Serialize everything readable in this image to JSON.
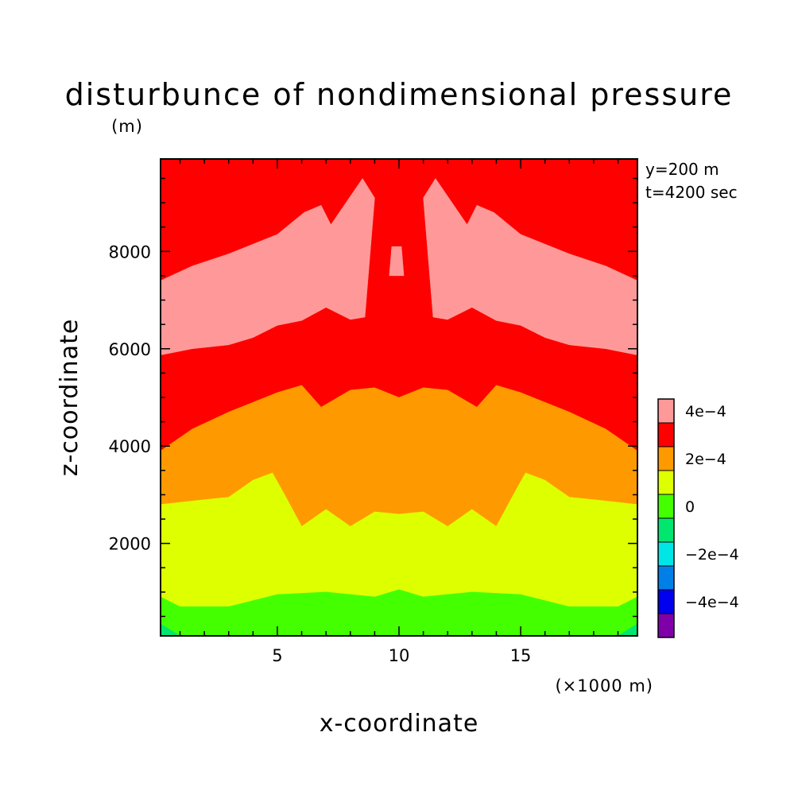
{
  "chart_data": {
    "type": "heatmap",
    "title": "disturbunce of nondimensional pressure",
    "xlabel": "x-coordinate",
    "ylabel": "z-coordinate",
    "x_unit": "(×1000 m)",
    "y_unit": "(m)",
    "annotations": [
      "y=200 m",
      "t=4200 sec"
    ],
    "xlim": [
      0.2,
      19.8
    ],
    "ylim": [
      100,
      9900
    ],
    "xticks": [
      {
        "value": 5,
        "label": "5"
      },
      {
        "value": 10,
        "label": "10"
      },
      {
        "value": 15,
        "label": "15"
      }
    ],
    "yticks": [
      {
        "value": 2000,
        "label": "2000"
      },
      {
        "value": 4000,
        "label": "4000"
      },
      {
        "value": 6000,
        "label": "6000"
      },
      {
        "value": 8000,
        "label": "8000"
      }
    ],
    "grid": false,
    "legend": "colorbar right",
    "colorbar": {
      "levels": [
        {
          "lower": -0.0005,
          "upper": -0.0004,
          "color": "#7f00a8"
        },
        {
          "lower": -0.0004,
          "upper": -0.0003,
          "color": "#0000ee"
        },
        {
          "lower": -0.0003,
          "upper": -0.0002,
          "color": "#0080e6"
        },
        {
          "lower": -0.0002,
          "upper": -0.0001,
          "color": "#00e6e6"
        },
        {
          "lower": -0.0001,
          "upper": 0,
          "color": "#00e66e"
        },
        {
          "lower": 0,
          "upper": 0.0001,
          "color": "#44ff00"
        },
        {
          "lower": 0.0001,
          "upper": 0.0002,
          "color": "#ddff00"
        },
        {
          "lower": 0.0002,
          "upper": 0.0003,
          "color": "#ff9900"
        },
        {
          "lower": 0.0003,
          "upper": 0.0004,
          "color": "#ff0000"
        },
        {
          "lower": 0.0004,
          "upper": 0.0005,
          "color": "#ff9999"
        }
      ],
      "labels": [
        {
          "value": 0.0004,
          "text": "4e−4"
        },
        {
          "value": 0.0002,
          "text": "2e−4"
        },
        {
          "value": 0,
          "text": "0"
        },
        {
          "value": -0.0002,
          "text": "−2e−4"
        },
        {
          "value": -0.0004,
          "text": "−4e−4"
        }
      ]
    },
    "regions": [
      {
        "name": "pink-upper-band",
        "color": "#ff9999",
        "points": [
          [
            0.2,
            5870
          ],
          [
            1.5,
            6000
          ],
          [
            3,
            6080
          ],
          [
            4,
            6230
          ],
          [
            5,
            6480
          ],
          [
            6,
            6580
          ],
          [
            7,
            6850
          ],
          [
            8,
            6600
          ],
          [
            8.6,
            6650
          ],
          [
            9,
            9100
          ],
          [
            8.5,
            9500
          ],
          [
            7.2,
            8550
          ],
          [
            6.8,
            8950
          ],
          [
            6.1,
            8800
          ],
          [
            5,
            8350
          ],
          [
            3,
            7950
          ],
          [
            1.5,
            7700
          ],
          [
            0.2,
            7400
          ]
        ]
      },
      {
        "name": "pink-upper-band-right",
        "color": "#ff9999",
        "points": [
          [
            19.8,
            5870
          ],
          [
            18.5,
            6000
          ],
          [
            17,
            6080
          ],
          [
            16,
            6230
          ],
          [
            15,
            6480
          ],
          [
            14,
            6580
          ],
          [
            13,
            6850
          ],
          [
            12,
            6600
          ],
          [
            11.4,
            6650
          ],
          [
            11,
            9100
          ],
          [
            11.5,
            9500
          ],
          [
            12.8,
            8550
          ],
          [
            13.2,
            8950
          ],
          [
            13.9,
            8800
          ],
          [
            15,
            8350
          ],
          [
            17,
            7950
          ],
          [
            18.5,
            7700
          ],
          [
            19.8,
            7400
          ]
        ]
      },
      {
        "name": "pink-center-blob",
        "color": "#ff9999",
        "points": [
          [
            9.6,
            7500
          ],
          [
            9.7,
            8100
          ],
          [
            10.1,
            8100
          ],
          [
            10.2,
            7500
          ]
        ]
      },
      {
        "name": "orange-band",
        "color": "#ff9900",
        "points": [
          [
            0.2,
            2800
          ],
          [
            2,
            2900
          ],
          [
            3,
            2950
          ],
          [
            4,
            3300
          ],
          [
            4.8,
            3450
          ],
          [
            5.3,
            3000
          ],
          [
            6,
            2350
          ],
          [
            7,
            2700
          ],
          [
            8,
            2350
          ],
          [
            9,
            2650
          ],
          [
            10,
            2600
          ],
          [
            11,
            2650
          ],
          [
            12,
            2350
          ],
          [
            13,
            2700
          ],
          [
            14,
            2350
          ],
          [
            14.7,
            3000
          ],
          [
            15.2,
            3450
          ],
          [
            16,
            3300
          ],
          [
            17,
            2950
          ],
          [
            18,
            2900
          ],
          [
            19.8,
            2800
          ],
          [
            19.8,
            3900
          ],
          [
            18.5,
            4350
          ],
          [
            17,
            4700
          ],
          [
            15,
            5100
          ],
          [
            14,
            5250
          ],
          [
            13.2,
            4800
          ],
          [
            12,
            5150
          ],
          [
            11,
            5200
          ],
          [
            10,
            5000
          ],
          [
            9,
            5200
          ],
          [
            8,
            5150
          ],
          [
            6.8,
            4800
          ],
          [
            6,
            5250
          ],
          [
            5,
            5100
          ],
          [
            3,
            4700
          ],
          [
            1.5,
            4350
          ],
          [
            0.2,
            3900
          ]
        ]
      },
      {
        "name": "yellow-band",
        "color": "#ddff00",
        "points": [
          [
            0.2,
            900
          ],
          [
            1,
            700
          ],
          [
            3,
            700
          ],
          [
            5,
            950
          ],
          [
            7,
            1000
          ],
          [
            9,
            900
          ],
          [
            10,
            1050
          ],
          [
            11,
            900
          ],
          [
            13,
            1000
          ],
          [
            15,
            950
          ],
          [
            17,
            700
          ],
          [
            19,
            700
          ],
          [
            19.8,
            900
          ],
          [
            19.8,
            2800
          ],
          [
            18,
            2900
          ],
          [
            17,
            2950
          ],
          [
            16,
            3300
          ],
          [
            15.2,
            3450
          ],
          [
            14.7,
            3000
          ],
          [
            14,
            2350
          ],
          [
            13,
            2700
          ],
          [
            12,
            2350
          ],
          [
            11,
            2650
          ],
          [
            10,
            2600
          ],
          [
            9,
            2650
          ],
          [
            8,
            2350
          ],
          [
            7,
            2700
          ],
          [
            6,
            2350
          ],
          [
            5.3,
            3000
          ],
          [
            4.8,
            3450
          ],
          [
            4,
            3300
          ],
          [
            3,
            2950
          ],
          [
            2,
            2900
          ],
          [
            0.2,
            2800
          ]
        ]
      },
      {
        "name": "green-band",
        "color": "#44ff00",
        "points": [
          [
            0.2,
            100
          ],
          [
            19.8,
            100
          ],
          [
            19.8,
            900
          ],
          [
            19,
            700
          ],
          [
            17,
            700
          ],
          [
            15,
            950
          ],
          [
            13,
            1000
          ],
          [
            11,
            900
          ],
          [
            10,
            1050
          ],
          [
            9,
            900
          ],
          [
            7,
            1000
          ],
          [
            5,
            950
          ],
          [
            3,
            700
          ],
          [
            1,
            700
          ],
          [
            0.2,
            900
          ]
        ]
      },
      {
        "name": "teal-corner-left",
        "color": "#00e66e",
        "points": [
          [
            0.2,
            100
          ],
          [
            1,
            100
          ],
          [
            0.2,
            350
          ]
        ]
      },
      {
        "name": "teal-corner-right",
        "color": "#00e66e",
        "points": [
          [
            19.8,
            100
          ],
          [
            19,
            100
          ],
          [
            19.8,
            350
          ]
        ]
      }
    ]
  }
}
